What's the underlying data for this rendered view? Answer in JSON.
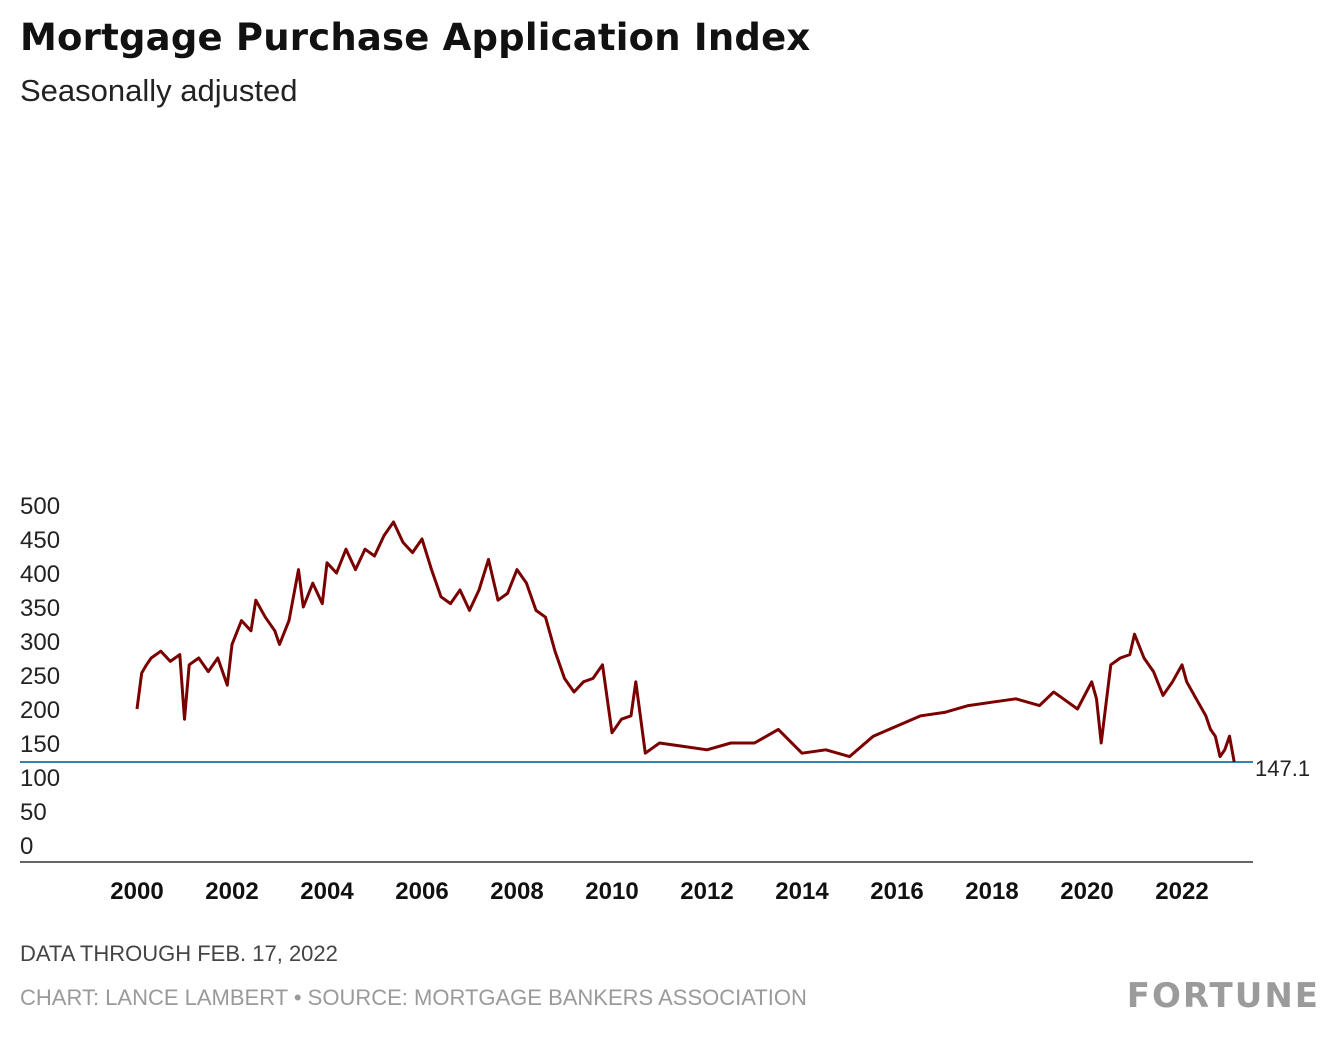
{
  "header": {
    "title": "Mortgage Purchase Application Index",
    "subtitle": "Seasonally adjusted"
  },
  "footer": {
    "note": "DATA THROUGH FEB. 17, 2022",
    "credit": "CHART: LANCE LAMBERT • SOURCE: MORTGAGE BANKERS ASSOCIATION",
    "logo": "FORTUNE"
  },
  "colors": {
    "line": "#7a0000",
    "reference_line": "#2f86b4",
    "axis": "#333333"
  },
  "chart_data": {
    "type": "line",
    "title": "Mortgage Purchase Application Index",
    "subtitle": "Seasonally adjusted",
    "xlim": [
      2000,
      2024.5
    ],
    "ylim": [
      0,
      525
    ],
    "x_ticks": [
      2000,
      2002,
      2004,
      2006,
      2008,
      2010,
      2012,
      2014,
      2016,
      2018,
      2020,
      2022
    ],
    "x_tick_labels": [
      "2000",
      "2002",
      "2004",
      "2006",
      "2008",
      "2010",
      "2012",
      "2014",
      "2016",
      "2018",
      "2020",
      "2022"
    ],
    "y_ticks": [
      0,
      50,
      100,
      150,
      200,
      250,
      300,
      350,
      400,
      450,
      500
    ],
    "y_tick_labels": [
      "0",
      "50",
      "100",
      "150",
      "200",
      "250",
      "300",
      "350",
      "400",
      "450",
      "500"
    ],
    "grid": false,
    "reference_line": {
      "value": 147.1,
      "label": "147.1"
    },
    "series": [
      {
        "x": [
          2000.0,
          2000.1,
          2000.2,
          2000.3,
          2000.5,
          2000.7,
          2000.9,
          2001.0,
          2001.1,
          2001.3,
          2001.5,
          2001.7,
          2001.9,
          2002.0,
          2002.2,
          2002.4,
          2002.5,
          2002.7,
          2002.9,
          2003.0,
          2003.2,
          2003.4,
          2003.5,
          2003.7,
          2003.9,
          2004.0,
          2004.2,
          2004.4,
          2004.6,
          2004.8,
          2005.0,
          2005.2,
          2005.4,
          2005.6,
          2005.8,
          2006.0,
          2006.2,
          2006.4,
          2006.6,
          2006.8,
          2007.0,
          2007.2,
          2007.4,
          2007.6,
          2007.8,
          2008.0,
          2008.2,
          2008.4,
          2008.6,
          2008.8,
          2009.0,
          2009.2,
          2009.4,
          2009.6,
          2009.8,
          2010.0,
          2010.2,
          2010.4,
          2010.5,
          2010.7,
          2011.0,
          2011.5,
          2012.0,
          2012.5,
          2013.0,
          2013.5,
          2014.0,
          2014.5,
          2015.0,
          2015.5,
          2016.0,
          2016.5,
          2017.0,
          2017.5,
          2018.0,
          2018.5,
          2019.0,
          2019.3,
          2019.5,
          2019.8,
          2020.1,
          2020.2,
          2020.3,
          2020.5,
          2020.7,
          2020.9,
          2021.0,
          2021.2,
          2021.4,
          2021.6,
          2021.8,
          2022.0,
          2022.1,
          2022.3,
          2022.5,
          2022.6,
          2022.7,
          2022.8,
          2022.9,
          2023.0,
          2023.1
        ],
        "values": [
          225,
          278,
          290,
          300,
          310,
          295,
          305,
          210,
          290,
          300,
          280,
          300,
          260,
          320,
          355,
          340,
          385,
          360,
          340,
          320,
          355,
          430,
          375,
          410,
          380,
          440,
          425,
          460,
          430,
          460,
          450,
          480,
          500,
          470,
          455,
          475,
          430,
          390,
          380,
          400,
          370,
          400,
          445,
          385,
          395,
          430,
          410,
          370,
          360,
          310,
          270,
          250,
          265,
          270,
          290,
          190,
          210,
          215,
          265,
          160,
          175,
          170,
          165,
          175,
          175,
          195,
          160,
          165,
          155,
          185,
          200,
          215,
          220,
          230,
          235,
          240,
          230,
          250,
          240,
          225,
          265,
          240,
          175,
          290,
          300,
          305,
          335,
          300,
          280,
          245,
          265,
          290,
          265,
          240,
          215,
          195,
          185,
          155,
          165,
          185,
          147.1
        ]
      }
    ]
  }
}
